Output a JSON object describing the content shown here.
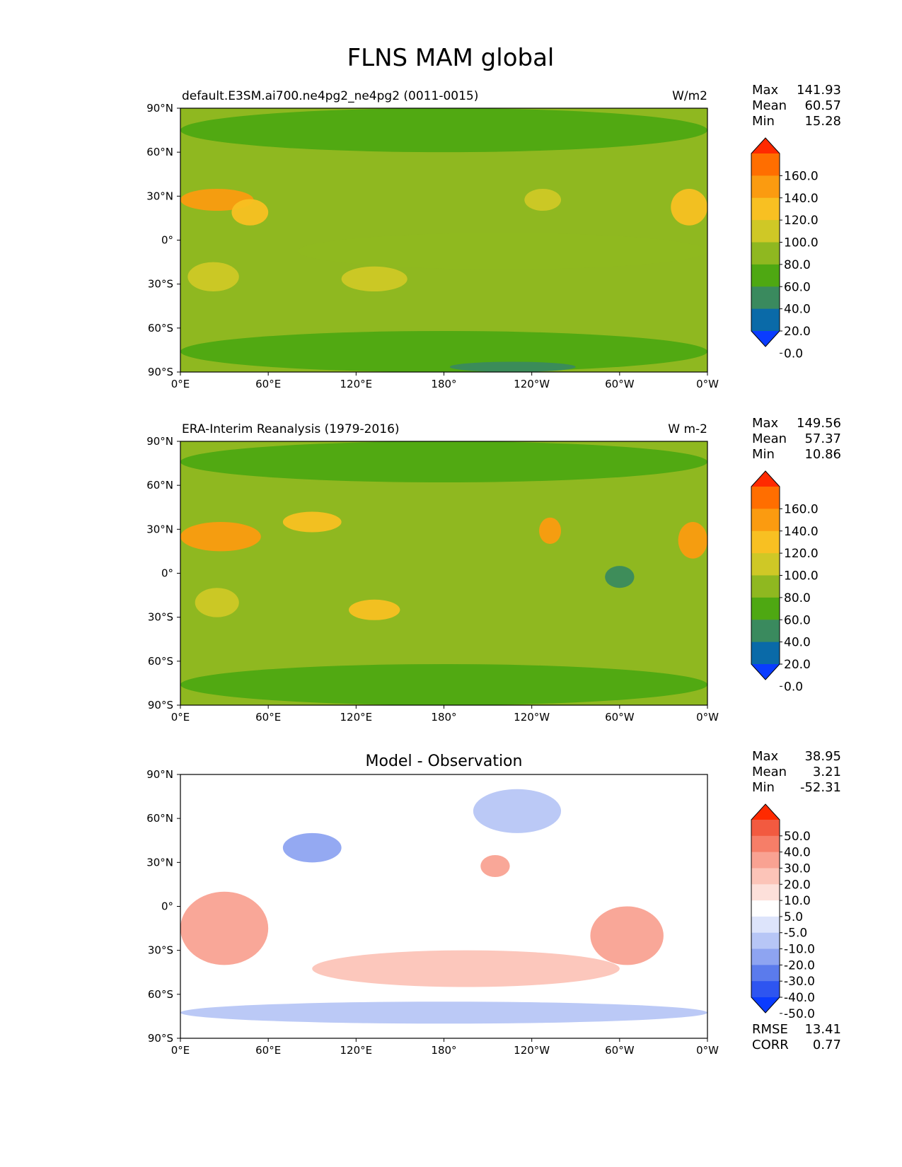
{
  "title": "FLNS MAM global",
  "chart_data": [
    {
      "type": "heatmap",
      "panel": "test",
      "title_left": "default.E3SM.ai700.ne4pg2_ne4pg2 (0011-0015)",
      "title_center": "",
      "units": "W/m2",
      "stats": [
        {
          "label": "Max",
          "value": "141.93"
        },
        {
          "label": "Mean",
          "value": "60.57"
        },
        {
          "label": "Min",
          "value": "15.28"
        }
      ],
      "x_ticks": [
        "0°E",
        "60°E",
        "120°E",
        "180°",
        "120°W",
        "60°W",
        "0°W"
      ],
      "y_ticks": [
        "90°N",
        "60°N",
        "30°N",
        "0°",
        "30°S",
        "60°S",
        "90°S"
      ],
      "xlim": [
        0,
        360
      ],
      "ylim": [
        -90,
        90
      ],
      "colorbar_labels": [
        "160.0",
        "140.0",
        "120.0",
        "100.0",
        "80.0",
        "60.0",
        "40.0",
        "20.0",
        "0.0"
      ],
      "colors": [
        "#ff2a00",
        "#ff6e00",
        "#fb9b10",
        "#f8c022",
        "#cfc826",
        "#8fb820",
        "#4ea812",
        "#3a8a5e",
        "#0a6aa8",
        "#0a3cff"
      ],
      "field": [
        {
          "lon": [
            0,
            50
          ],
          "lat": [
            20,
            35
          ],
          "value": 120
        },
        {
          "lon": [
            35,
            60
          ],
          "lat": [
            10,
            28
          ],
          "value": 100
        },
        {
          "lon": [
            5,
            40
          ],
          "lat": [
            -35,
            -15
          ],
          "value": 85
        },
        {
          "lon": [
            110,
            155
          ],
          "lat": [
            -35,
            -18
          ],
          "value": 90
        },
        {
          "lon": [
            235,
            260
          ],
          "lat": [
            20,
            35
          ],
          "value": 90
        },
        {
          "lon": [
            335,
            360
          ],
          "lat": [
            10,
            35
          ],
          "value": 110
        },
        {
          "lon": [
            80,
            360
          ],
          "lat": [
            -20,
            5
          ],
          "value": 65
        },
        {
          "lon": [
            0,
            360
          ],
          "lat": [
            60,
            90
          ],
          "value": 45
        },
        {
          "lon": [
            0,
            360
          ],
          "lat": [
            -90,
            -62
          ],
          "value": 45
        },
        {
          "lon": [
            184,
            270
          ],
          "lat": [
            -90,
            -83
          ],
          "value": 25
        }
      ]
    },
    {
      "type": "heatmap",
      "panel": "reference",
      "title_left": "ERA-Interim Reanalysis (1979-2016)",
      "title_center": "",
      "units": "W m-2",
      "stats": [
        {
          "label": "Max",
          "value": "149.56"
        },
        {
          "label": "Mean",
          "value": "57.37"
        },
        {
          "label": "Min",
          "value": "10.86"
        }
      ],
      "x_ticks": [
        "0°E",
        "60°E",
        "120°E",
        "180°",
        "120°W",
        "60°W",
        "0°W"
      ],
      "y_ticks": [
        "90°N",
        "60°N",
        "30°N",
        "0°",
        "30°S",
        "60°S",
        "90°S"
      ],
      "xlim": [
        0,
        360
      ],
      "ylim": [
        -90,
        90
      ],
      "colorbar_labels": [
        "160.0",
        "140.0",
        "120.0",
        "100.0",
        "80.0",
        "60.0",
        "40.0",
        "20.0",
        "0.0"
      ],
      "colors": [
        "#ff2a00",
        "#ff6e00",
        "#fb9b10",
        "#f8c022",
        "#cfc826",
        "#8fb820",
        "#4ea812",
        "#3a8a5e",
        "#0a6aa8",
        "#0a3cff"
      ],
      "field": [
        {
          "lon": [
            0,
            55
          ],
          "lat": [
            15,
            35
          ],
          "value": 130
        },
        {
          "lon": [
            70,
            110
          ],
          "lat": [
            28,
            42
          ],
          "value": 110
        },
        {
          "lon": [
            10,
            40
          ],
          "lat": [
            -30,
            -10
          ],
          "value": 85
        },
        {
          "lon": [
            115,
            150
          ],
          "lat": [
            -32,
            -18
          ],
          "value": 105
        },
        {
          "lon": [
            245,
            260
          ],
          "lat": [
            20,
            38
          ],
          "value": 120
        },
        {
          "lon": [
            290,
            310
          ],
          "lat": [
            -10,
            5
          ],
          "value": 30
        },
        {
          "lon": [
            340,
            360
          ],
          "lat": [
            10,
            35
          ],
          "value": 120
        },
        {
          "lon": [
            0,
            360
          ],
          "lat": [
            62,
            90
          ],
          "value": 45
        },
        {
          "lon": [
            0,
            360
          ],
          "lat": [
            -90,
            -62
          ],
          "value": 45
        }
      ]
    },
    {
      "type": "heatmap",
      "panel": "difference",
      "title_left": "",
      "title_center": "Model - Observation",
      "units": "",
      "stats": [
        {
          "label": "Max",
          "value": "38.95"
        },
        {
          "label": "Mean",
          "value": "3.21"
        },
        {
          "label": "Min",
          "value": "-52.31"
        }
      ],
      "extra_stats": [
        {
          "label": "RMSE",
          "value": "13.41"
        },
        {
          "label": "CORR",
          "value": "0.77"
        }
      ],
      "x_ticks": [
        "0°E",
        "60°E",
        "120°E",
        "180°",
        "120°W",
        "60°W",
        "0°W"
      ],
      "y_ticks": [
        "90°N",
        "60°N",
        "30°N",
        "0°",
        "30°S",
        "60°S",
        "90°S"
      ],
      "xlim": [
        0,
        360
      ],
      "ylim": [
        -90,
        90
      ],
      "colorbar_labels": [
        "50.0",
        "40.0",
        "30.0",
        "20.0",
        "10.0",
        "5.0",
        "-5.0",
        "-10.0",
        "-20.0",
        "-30.0",
        "-40.0",
        "-50.0"
      ],
      "colors": [
        "#ff2a00",
        "#f25a40",
        "#f67e68",
        "#f9a292",
        "#fcc4b8",
        "#fde0da",
        "#ffffff",
        "#dde4fb",
        "#b7c6f6",
        "#8ea4f1",
        "#5b7bec",
        "#2e55f0",
        "#0a3cff"
      ],
      "field": [
        {
          "lon": [
            0,
            60
          ],
          "lat": [
            -40,
            10
          ],
          "value": 25
        },
        {
          "lon": [
            280,
            330
          ],
          "lat": [
            -40,
            0
          ],
          "value": 25
        },
        {
          "lon": [
            205,
            225
          ],
          "lat": [
            20,
            35
          ],
          "value": 25
        },
        {
          "lon": [
            70,
            110
          ],
          "lat": [
            30,
            50
          ],
          "value": -30
        },
        {
          "lon": [
            200,
            260
          ],
          "lat": [
            50,
            80
          ],
          "value": -20
        },
        {
          "lon": [
            0,
            360
          ],
          "lat": [
            -80,
            -65
          ],
          "value": -20
        },
        {
          "lon": [
            90,
            300
          ],
          "lat": [
            -55,
            -30
          ],
          "value": 15
        }
      ]
    }
  ]
}
